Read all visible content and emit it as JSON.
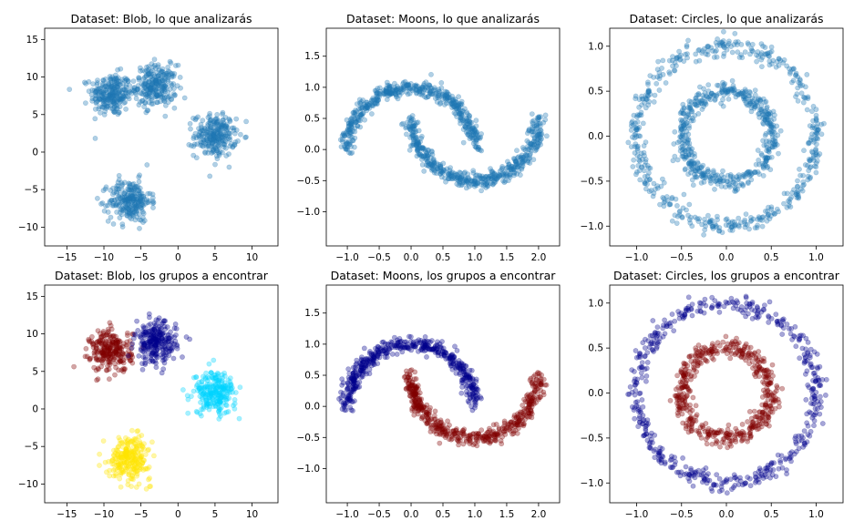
{
  "chart_data": [
    {
      "type": "scatter",
      "dataset": "blob",
      "colored": false,
      "title": "Dataset: Blob, lo que analizarás",
      "xlim": [
        -18,
        13.5
      ],
      "ylim": [
        -12.5,
        16.5
      ],
      "xticks": [
        -15,
        -10,
        -5,
        0,
        5,
        10
      ],
      "yticks": [
        -10,
        -5,
        0,
        5,
        10,
        15
      ],
      "tick_labels_x": [
        "−15",
        "−10",
        "−5",
        "0",
        "5",
        "10"
      ],
      "tick_labels_y": [
        "−10",
        "−5",
        "0",
        "5",
        "10",
        "15"
      ],
      "clusters": [
        {
          "center": [
            -9,
            7.7
          ],
          "spread": 1.4,
          "n": 250
        },
        {
          "center": [
            -3,
            8.8
          ],
          "spread": 1.4,
          "n": 250
        },
        {
          "center": [
            5,
            2.2
          ],
          "spread": 1.4,
          "n": 250
        },
        {
          "center": [
            -6.5,
            -6.5
          ],
          "spread": 1.4,
          "n": 250
        }
      ],
      "point_color": "#1f77b4",
      "point_opacity": 0.35
    },
    {
      "type": "scatter",
      "dataset": "moons",
      "colored": false,
      "title": "Dataset: Moons, lo que analizarás",
      "xlim": [
        -1.33,
        2.33
      ],
      "ylim": [
        -1.55,
        1.95
      ],
      "xticks": [
        -1.0,
        -0.5,
        0.0,
        0.5,
        1.0,
        1.5,
        2.0
      ],
      "yticks": [
        -1.0,
        -0.5,
        0.0,
        0.5,
        1.0,
        1.5
      ],
      "tick_labels_x": [
        "−1.0",
        "−0.5",
        "0.0",
        "0.5",
        "1.0",
        "1.5",
        "2.0"
      ],
      "tick_labels_y": [
        "−1.0",
        "−0.5",
        "0.0",
        "0.5",
        "1.0",
        "1.5"
      ],
      "n_per_moon": 500,
      "noise": 0.06,
      "point_color": "#1f77b4",
      "point_opacity": 0.35
    },
    {
      "type": "scatter",
      "dataset": "circles",
      "colored": false,
      "title": "Dataset: Circles, lo que analizarás",
      "xlim": [
        -1.3,
        1.3
      ],
      "ylim": [
        -1.22,
        1.2
      ],
      "xticks": [
        -1.0,
        -0.5,
        0.0,
        0.5,
        1.0
      ],
      "yticks": [
        -1.0,
        -0.5,
        0.0,
        0.5,
        1.0
      ],
      "tick_labels_x": [
        "−1.0",
        "−0.5",
        "0.0",
        "0.5",
        "1.0"
      ],
      "tick_labels_y": [
        "−1.0",
        "−0.5",
        "0.0",
        "0.5",
        "1.0"
      ],
      "outer_radius": 1.0,
      "inner_radius": 0.5,
      "n_per_circle": 500,
      "noise": 0.05,
      "point_color": "#1f77b4",
      "point_opacity": 0.35
    },
    {
      "type": "scatter",
      "dataset": "blob",
      "colored": true,
      "title": "Dataset: Blob, los grupos a encontrar",
      "xlim": [
        -18,
        13.5
      ],
      "ylim": [
        -12.5,
        16.5
      ],
      "xticks": [
        -15,
        -10,
        -5,
        0,
        5,
        10
      ],
      "yticks": [
        -10,
        -5,
        0,
        5,
        10,
        15
      ],
      "tick_labels_x": [
        "−15",
        "−10",
        "−5",
        "0",
        "5",
        "10"
      ],
      "tick_labels_y": [
        "−10",
        "−5",
        "0",
        "5",
        "10",
        "15"
      ],
      "clusters": [
        {
          "center": [
            -9,
            7.7
          ],
          "spread": 1.4,
          "n": 250,
          "color": "#800000"
        },
        {
          "center": [
            -3,
            8.8
          ],
          "spread": 1.4,
          "n": 250,
          "color": "#00008b"
        },
        {
          "center": [
            5,
            2.2
          ],
          "spread": 1.4,
          "n": 250,
          "color": "#00d4ff"
        },
        {
          "center": [
            -6.5,
            -6.5
          ],
          "spread": 1.4,
          "n": 250,
          "color": "#ffe600"
        }
      ],
      "point_opacity": 0.35
    },
    {
      "type": "scatter",
      "dataset": "moons",
      "colored": true,
      "title": "Dataset: Moons, los grupos a encontrar",
      "xlim": [
        -1.33,
        2.33
      ],
      "ylim": [
        -1.55,
        1.95
      ],
      "xticks": [
        -1.0,
        -0.5,
        0.0,
        0.5,
        1.0,
        1.5,
        2.0
      ],
      "yticks": [
        -1.0,
        -0.5,
        0.0,
        0.5,
        1.0,
        1.5
      ],
      "tick_labels_x": [
        "−1.0",
        "−0.5",
        "0.0",
        "0.5",
        "1.0",
        "1.5",
        "2.0"
      ],
      "tick_labels_y": [
        "−1.0",
        "−0.5",
        "0.0",
        "0.5",
        "1.0",
        "1.5"
      ],
      "n_per_moon": 500,
      "noise": 0.06,
      "moon_colors": [
        "#00008b",
        "#800000"
      ],
      "point_opacity": 0.35
    },
    {
      "type": "scatter",
      "dataset": "circles",
      "colored": true,
      "title": "Dataset: Circles, los grupos a encontrar",
      "xlim": [
        -1.3,
        1.3
      ],
      "ylim": [
        -1.22,
        1.2
      ],
      "xticks": [
        -1.0,
        -0.5,
        0.0,
        0.5,
        1.0
      ],
      "yticks": [
        -1.0,
        -0.5,
        0.0,
        0.5,
        1.0
      ],
      "tick_labels_x": [
        "−1.0",
        "−0.5",
        "0.0",
        "0.5",
        "1.0"
      ],
      "tick_labels_y": [
        "−1.0",
        "−0.5",
        "0.0",
        "0.5",
        "1.0"
      ],
      "outer_radius": 1.0,
      "inner_radius": 0.5,
      "n_per_circle": 500,
      "noise": 0.05,
      "circle_colors": [
        "#00008b",
        "#800000"
      ],
      "point_opacity": 0.35
    }
  ]
}
